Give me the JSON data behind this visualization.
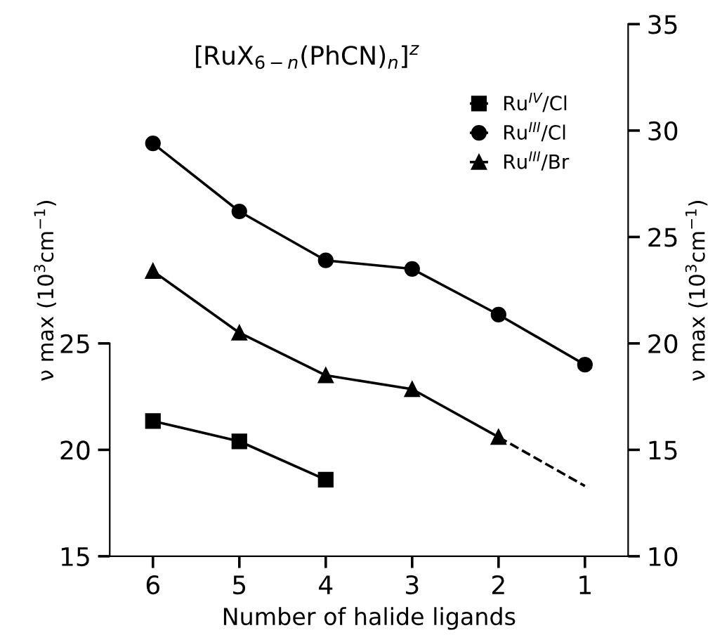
{
  "chart_data": {
    "type": "line",
    "title": "[RuX$_{6−n}$(PhCN)$_{n}$]$^{z}$",
    "xlabel": "Number of halide ligands",
    "ylabel": "ν max (10$^{3}$cm$^{−1}$)",
    "y2label": "ν max (10$^{3}$cm$^{−1}$)",
    "x": [
      6,
      5,
      4,
      3,
      2,
      1
    ],
    "xlim": [
      6.5,
      0.5
    ],
    "xticks": [
      6,
      5,
      4,
      3,
      2,
      1
    ],
    "ylim": [
      15,
      40
    ],
    "yticks": [
      15,
      20,
      25
    ],
    "y2lim": [
      10,
      35
    ],
    "y2ticks": [
      10,
      15,
      20,
      25,
      30,
      35
    ],
    "series": [
      {
        "name": "Ru$^{IV}$/Cl",
        "color": "#000000",
        "marker": "square",
        "axis": "y",
        "x": [
          6,
          5,
          4
        ],
        "values": [
          21.35,
          20.4,
          18.6
        ]
      },
      {
        "name": "Ru$^{III}$/Cl",
        "color": "#000000",
        "marker": "circle",
        "axis": "y2",
        "values": [
          29.4,
          26.2,
          23.9,
          23.5,
          21.35,
          19.0
        ]
      },
      {
        "name": "Ru$^{III}$/Br",
        "color": "#000000",
        "marker": "triangle",
        "axis": "y2",
        "x": [
          6,
          5,
          4,
          3,
          2
        ],
        "values": [
          23.4,
          20.5,
          18.5,
          17.85,
          15.6
        ]
      },
      {
        "color": "#000000",
        "marker": "none",
        "line_style": "dashed",
        "axis": "y2",
        "x": [
          2,
          1
        ],
        "values": [
          15.6,
          13.3
        ]
      }
    ],
    "grid": false,
    "legend": "top right"
  }
}
